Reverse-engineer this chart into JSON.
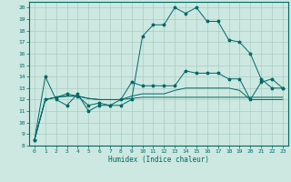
{
  "xlabel": "Humidex (Indice chaleur)",
  "xlim": [
    -0.5,
    23.5
  ],
  "ylim": [
    8,
    20.5
  ],
  "xticks": [
    0,
    1,
    2,
    3,
    4,
    5,
    6,
    7,
    8,
    9,
    10,
    11,
    12,
    13,
    14,
    15,
    16,
    17,
    18,
    19,
    20,
    21,
    22,
    23
  ],
  "yticks": [
    8,
    9,
    10,
    11,
    12,
    13,
    14,
    15,
    16,
    17,
    18,
    19,
    20
  ],
  "bg_color": "#cce8e0",
  "line_color": "#006868",
  "grid_color": "#aaccc4",
  "series1_y": [
    8.5,
    14.0,
    12.0,
    11.5,
    12.5,
    11.0,
    11.5,
    11.5,
    11.5,
    12.0,
    17.5,
    18.5,
    18.5,
    20.0,
    19.5,
    20.0,
    18.8,
    18.8,
    17.2,
    17.0,
    16.0,
    13.8,
    13.0,
    13.0
  ],
  "series1_has_markers": true,
  "series2_y": [
    8.5,
    12.0,
    12.2,
    12.5,
    12.3,
    11.5,
    11.7,
    11.5,
    12.0,
    13.5,
    13.2,
    13.2,
    13.2,
    13.2,
    14.5,
    14.3,
    14.3,
    14.3,
    13.8,
    13.8,
    12.0,
    13.5,
    13.8,
    13.0
  ],
  "series2_has_markers": true,
  "series3_y": [
    8.5,
    12.0,
    12.2,
    12.3,
    12.3,
    12.1,
    12.0,
    12.0,
    12.0,
    12.3,
    12.5,
    12.5,
    12.5,
    12.8,
    13.0,
    13.0,
    13.0,
    13.0,
    13.0,
    12.8,
    12.0,
    12.0,
    12.0,
    12.0
  ],
  "series3_has_markers": false,
  "series4_y": [
    8.5,
    12.0,
    12.2,
    12.3,
    12.3,
    12.1,
    12.0,
    12.0,
    12.0,
    12.1,
    12.2,
    12.2,
    12.2,
    12.2,
    12.2,
    12.2,
    12.2,
    12.2,
    12.2,
    12.2,
    12.2,
    12.2,
    12.2,
    12.2
  ],
  "series4_has_markers": false
}
